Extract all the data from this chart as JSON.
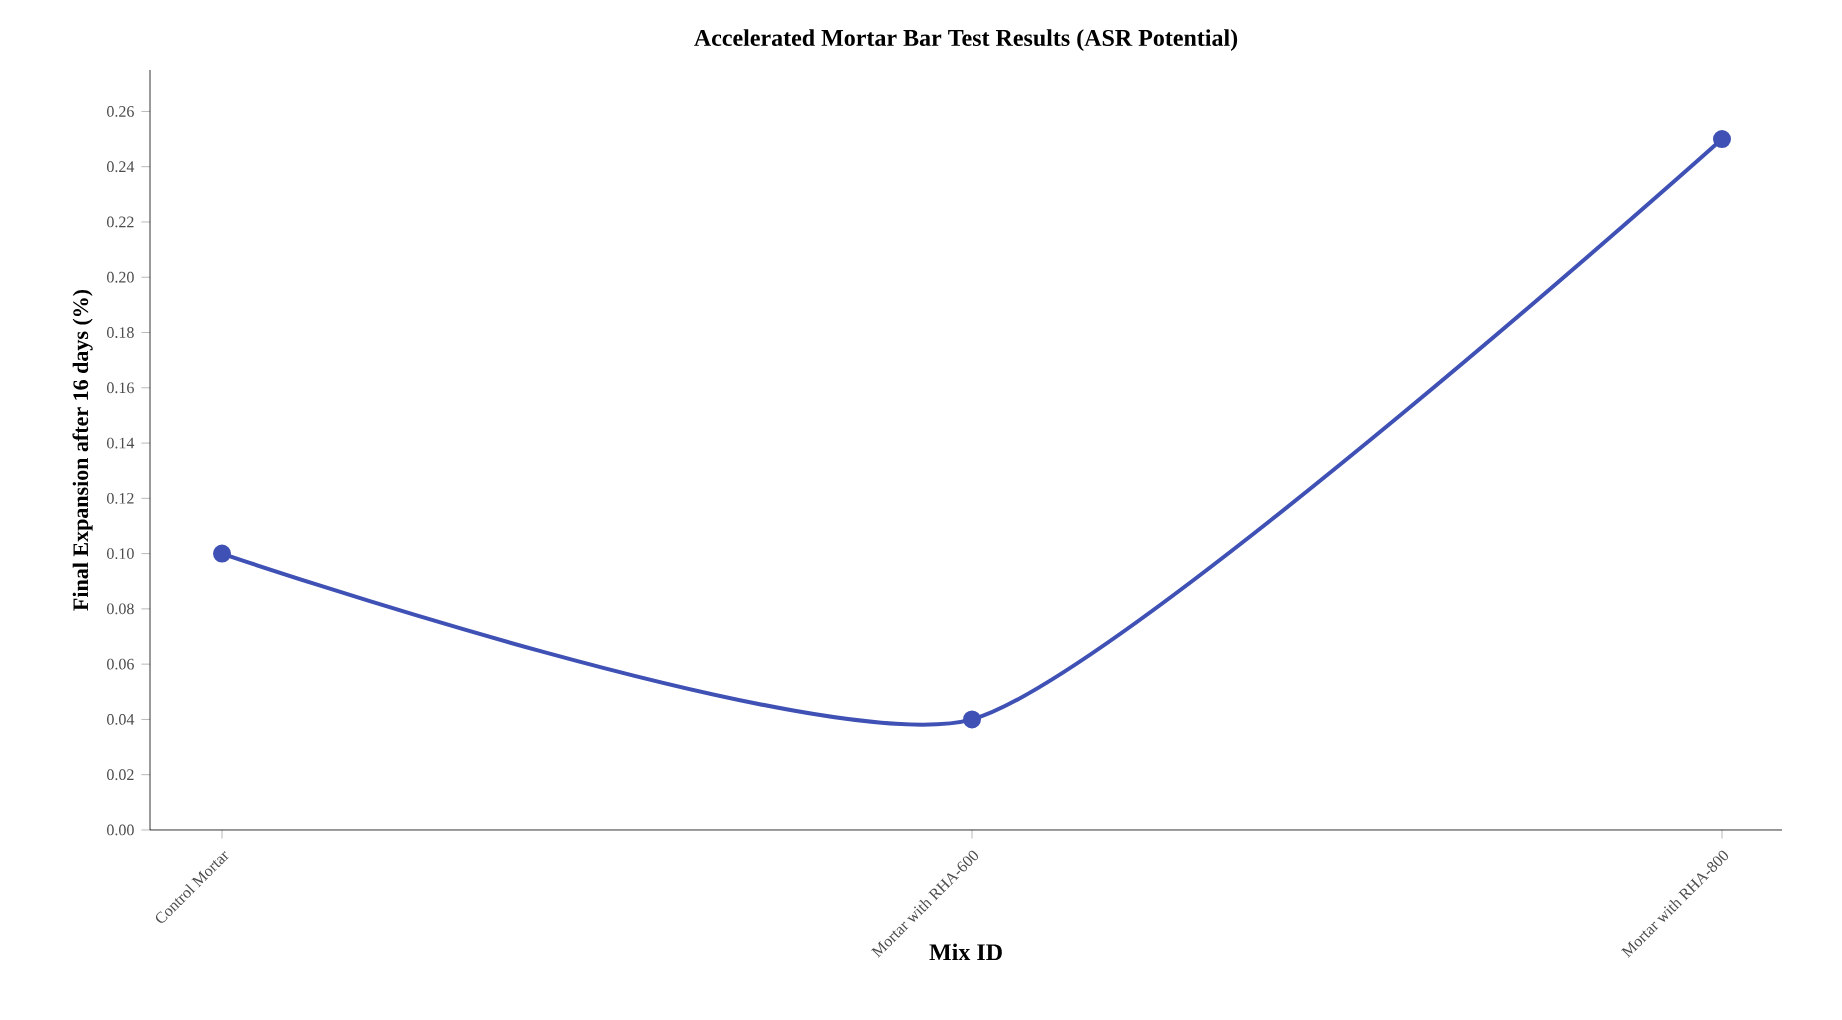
{
  "chart_data": {
    "type": "line",
    "title": "Accelerated Mortar Bar Test Results (ASR Potential)",
    "xlabel": "Mix ID",
    "ylabel": "Final Expansion after 16 days (%)",
    "categories": [
      "Control Mortar",
      "Mortar with RHA-600",
      "Mortar with RHA-800"
    ],
    "series": [
      {
        "color": "#3f51b5",
        "values": [
          0.1,
          0.04,
          0.25
        ]
      }
    ],
    "ylim": [
      0,
      0.275
    ],
    "yticks": [
      {
        "value": 0,
        "label": "0.00"
      },
      0.02,
      0.04,
      0.06,
      0.08,
      {
        "value": 0.1,
        "label": "0.10"
      },
      0.12,
      0.14,
      0.16,
      0.18,
      {
        "value": 0.2,
        "label": "0.20"
      },
      0.22,
      0.24,
      0.26
    ],
    "marker": "circle",
    "line_style": "solid"
  }
}
